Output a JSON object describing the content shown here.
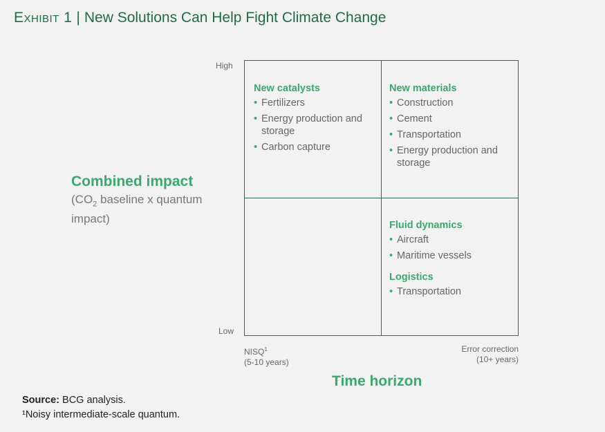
{
  "header": {
    "exhibit_label": "Exhibit 1",
    "separator": "|",
    "title": "New Solutions Can Help Fight Climate Change"
  },
  "y_axis": {
    "title": "Combined impact",
    "subtitle_prefix": "(CO",
    "subtitle_sub": "2",
    "subtitle_rest": " baseline x quantum impact)",
    "high_label": "High",
    "low_label": "Low"
  },
  "x_axis": {
    "title": "Time horizon",
    "left_line1": "NISQ",
    "left_sup": "1",
    "left_line2": "(5-10 years)",
    "right_line1": "Error correction",
    "right_line2": "(10+ years)"
  },
  "quadrants": {
    "top_left": {
      "heading": "New catalysts",
      "items": [
        "Fertilizers",
        "Energy production and storage",
        "Carbon capture"
      ]
    },
    "top_right": {
      "heading": "New materials",
      "items": [
        "Construction",
        "Cement",
        "Transportation",
        "Energy production and storage"
      ]
    },
    "bottom_right": {
      "heading": "Fluid dynamics",
      "items": [
        "Aircraft",
        "Maritime vessels"
      ],
      "heading2": "Logistics",
      "items2": [
        "Transportation"
      ]
    }
  },
  "footer": {
    "source_label": "Source:",
    "source_text": " BCG analysis.",
    "footnote": "¹Noisy intermediate-scale quantum."
  },
  "colors": {
    "title": "#1e6b47",
    "accent": "#3aaa6a",
    "grid": "#2e6a4c",
    "background": "#f2f2f2"
  }
}
